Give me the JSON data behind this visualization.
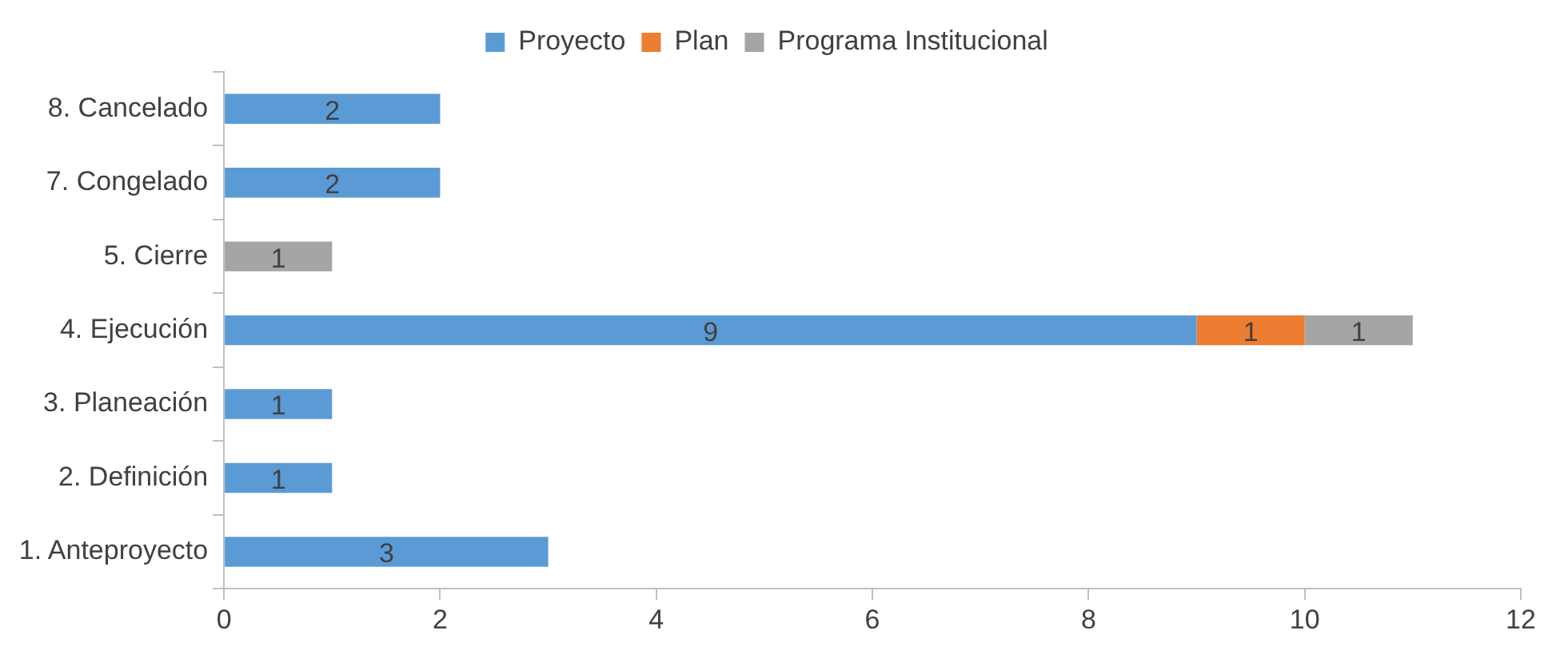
{
  "chart_data": {
    "type": "bar",
    "orientation": "horizontal",
    "stacked": true,
    "categories": [
      "8. Cancelado",
      "7. Congelado",
      "5. Cierre",
      "4. Ejecución",
      "3. Planeación",
      "2. Definición",
      "1. Anteproyecto"
    ],
    "series": [
      {
        "name": "Proyecto",
        "color": "#5b9bd5",
        "values": [
          2,
          2,
          null,
          9,
          1,
          1,
          3
        ]
      },
      {
        "name": "Plan",
        "color": "#ed7d31",
        "values": [
          null,
          null,
          null,
          1,
          null,
          null,
          null
        ]
      },
      {
        "name": "Programa Institucional",
        "color": "#a5a5a5",
        "values": [
          null,
          null,
          1,
          1,
          null,
          null,
          null
        ]
      }
    ],
    "xlim": [
      0,
      12
    ],
    "xticks": [
      0,
      2,
      4,
      6,
      8,
      10,
      12
    ],
    "grid": false,
    "legend": "top",
    "data_labels": true
  }
}
